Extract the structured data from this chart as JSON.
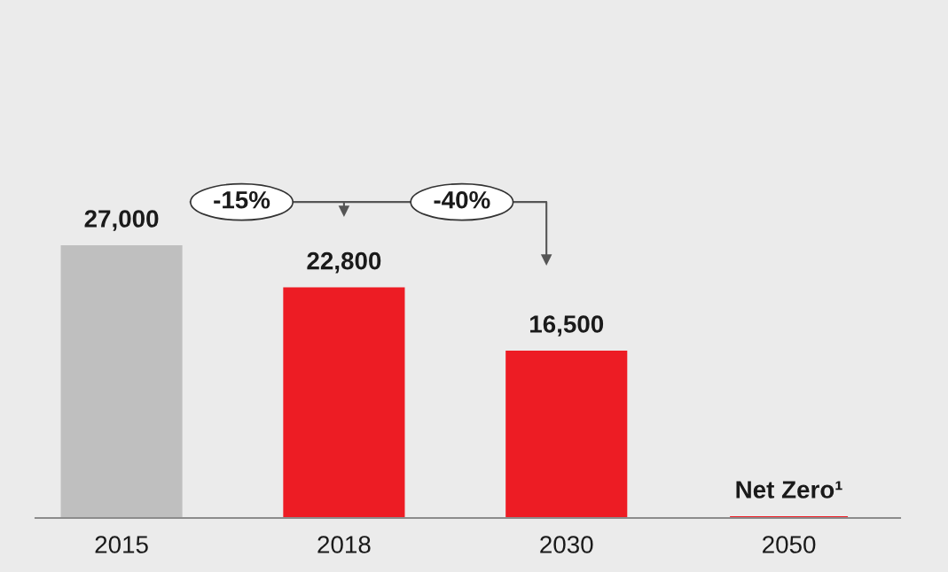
{
  "chart_data": {
    "type": "bar",
    "categories": [
      "2015",
      "2018",
      "2030",
      "2050"
    ],
    "values": [
      27000,
      22800,
      16500,
      0
    ],
    "colors": [
      "#bfbfbf",
      "#ed1c24",
      "#ed1c24",
      "#ed1c24"
    ],
    "value_labels": [
      "27,000",
      "22,800",
      "16,500",
      "Net Zero¹"
    ],
    "annotations": [
      "-15%",
      "-40%"
    ]
  }
}
